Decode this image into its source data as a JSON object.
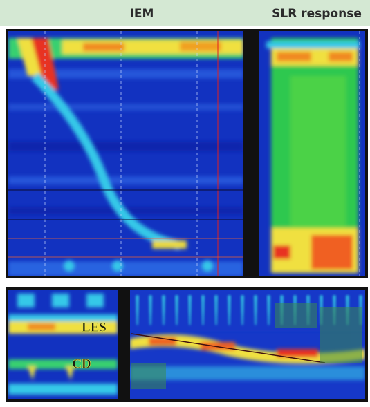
{
  "header": {
    "left_title": "IEM",
    "right_title": "SLR response"
  },
  "labels": {
    "les": "LES",
    "cd": "CD"
  }
}
